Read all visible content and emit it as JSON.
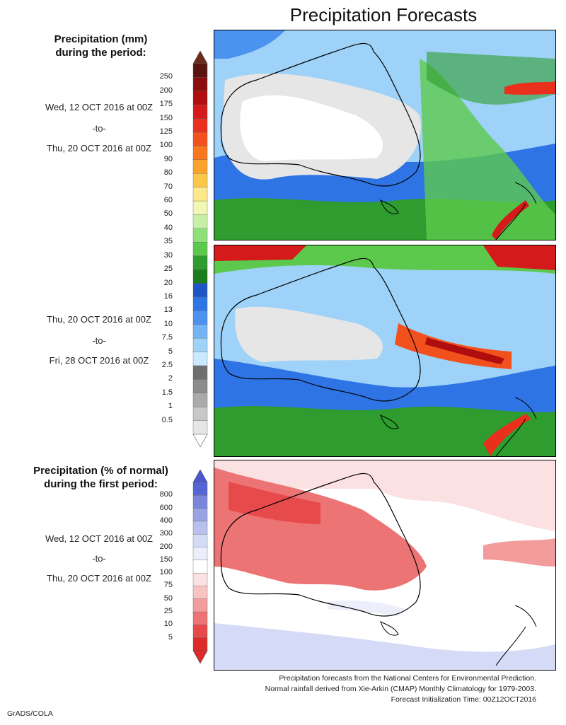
{
  "title": "Precipitation Forecasts",
  "legend_top": {
    "header_line1": "Precipitation (mm)",
    "header_line2": "during the period:",
    "ticks": [
      "250",
      "200",
      "175",
      "150",
      "125",
      "100",
      "90",
      "80",
      "70",
      "60",
      "50",
      "40",
      "35",
      "30",
      "25",
      "20",
      "16",
      "13",
      "10",
      "7.5",
      "5",
      "2.5",
      "2",
      "1.5",
      "1",
      "0.5"
    ],
    "colors": [
      "#5a1410",
      "#8b0d0d",
      "#b00e0e",
      "#d41a1a",
      "#e8301c",
      "#f2501c",
      "#f87820",
      "#fca32d",
      "#fdc74a",
      "#fde98a",
      "#f2f7b4",
      "#c6f0a6",
      "#90e07a",
      "#5cc94c",
      "#2e9c2e",
      "#1c7d1c",
      "#1e54c4",
      "#2f74e4",
      "#4c92ef",
      "#74b4f4",
      "#9ed2f8",
      "#c8eaff",
      "#6e6e6e",
      "#8c8c8c",
      "#aaaaaa",
      "#c8c8c8",
      "#e6e6e6"
    ],
    "top_arrow": "#6b2b1c",
    "bottom_arrow": "#ffffff"
  },
  "legend_bottom": {
    "header_line1": "Precipitation (% of normal)",
    "header_line2": "during the first period:",
    "ticks": [
      "800",
      "600",
      "400",
      "300",
      "200",
      "150",
      "100",
      "75",
      "50",
      "25",
      "10",
      "5"
    ],
    "colors": [
      "#5565d4",
      "#7a86dc",
      "#9aa3e4",
      "#b9c0ee",
      "#d5dbf6",
      "#eceffb",
      "#ffffff",
      "#fbe1e1",
      "#f7c3c3",
      "#f29c9c",
      "#ec7474",
      "#e64a4a",
      "#dd2a2a"
    ],
    "top_arrow": "#4a57cf",
    "bottom_arrow": "#e02a2a"
  },
  "periods": [
    {
      "start": "Wed, 12 OCT 2016 at 00Z",
      "sep": "-to-",
      "end": "Thu, 20 OCT 2016 at 00Z"
    },
    {
      "start": "Thu, 20 OCT 2016 at 00Z",
      "sep": "-to-",
      "end": "Fri, 28 OCT 2016 at 00Z"
    },
    {
      "start": "Wed, 12 OCT 2016 at 00Z",
      "sep": "-to-",
      "end": "Thu, 20 OCT 2016 at 00Z"
    }
  ],
  "footer": {
    "line1": "Precipitation forecasts from the National Centers for Environmental Prediction.",
    "line2": "Normal rainfall derived from Xie-Arkin (CMAP) Monthly Climatology for 1979-2003.",
    "line3": "Forecast Initialization Time: 00Z12OCT2016"
  },
  "credit": "GrADS/COLA"
}
